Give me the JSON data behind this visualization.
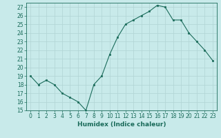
{
  "x": [
    0,
    1,
    2,
    3,
    4,
    5,
    6,
    7,
    8,
    9,
    10,
    11,
    12,
    13,
    14,
    15,
    16,
    17,
    18,
    19,
    20,
    21,
    22,
    23
  ],
  "y": [
    19,
    18,
    18.5,
    18,
    17,
    16.5,
    16,
    15,
    18,
    19,
    21.5,
    23.5,
    25,
    25.5,
    26,
    26.5,
    27.2,
    27,
    25.5,
    25.5,
    24,
    23,
    22,
    20.8
  ],
  "line_color": "#1a6b5a",
  "marker": "s",
  "marker_size": 2.0,
  "background_color": "#c8eaea",
  "grid_color": "#b0d4d4",
  "xlabel": "Humidex (Indice chaleur)",
  "xlim": [
    -0.5,
    23.5
  ],
  "ylim": [
    15,
    27.5
  ],
  "yticks": [
    15,
    16,
    17,
    18,
    19,
    20,
    21,
    22,
    23,
    24,
    25,
    26,
    27
  ],
  "xticks": [
    0,
    1,
    2,
    3,
    4,
    5,
    6,
    7,
    8,
    9,
    10,
    11,
    12,
    13,
    14,
    15,
    16,
    17,
    18,
    19,
    20,
    21,
    22,
    23
  ],
  "tick_fontsize": 5.5,
  "label_fontsize": 6.5
}
